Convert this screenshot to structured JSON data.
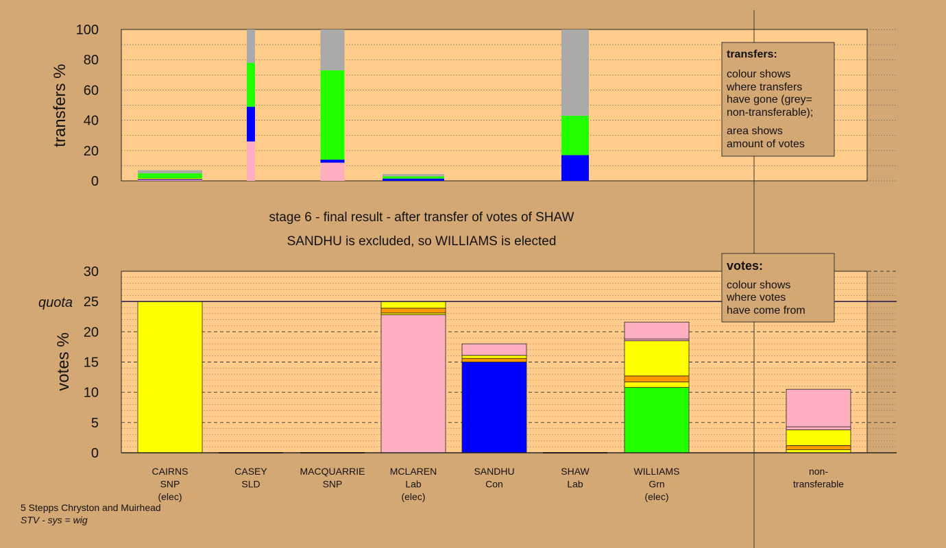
{
  "page": {
    "stage_line": "stage 6 - final result - after transfer of votes of SHAW",
    "outcome_line": "SANDHU is excluded, so WILLIAMS is elected",
    "footer_title": "5 Stepps Chryston and Muirhead",
    "footer_system": "STV - sys = wig"
  },
  "chart_data": [
    {
      "type": "bar",
      "ylabel": "transfers %",
      "ylim": [
        0,
        100
      ],
      "yticks": [
        0,
        20,
        40,
        60,
        80,
        100
      ],
      "grid": "dotted minor lines",
      "legend_box": {
        "title": "transfers:",
        "lines": [
          "colour shows",
          "where transfers",
          "have gone (grey=",
          "non-transferable);",
          "area shows",
          "amount of votes"
        ]
      },
      "categories": [
        "CAIRNS",
        "CASEY",
        "MACQUARRIE",
        "MCLAREN",
        "SANDHU",
        "SHAW",
        "WILLIAMS"
      ],
      "stacks": [
        {
          "category": "CAIRNS",
          "segments": [
            {
              "color": "#ffb0c0",
              "value": 0.5
            },
            {
              "color": "#0000ff",
              "value": 0.5
            },
            {
              "color": "#ff9900",
              "value": 0.5
            },
            {
              "color": "#22ff00",
              "value": 3.5
            },
            {
              "color": "#aaaaaa",
              "value": 2
            }
          ]
        },
        {
          "category": "CASEY",
          "segments": [
            {
              "color": "#ffb0c0",
              "value": 26
            },
            {
              "color": "#0000ff",
              "value": 23
            },
            {
              "color": "#22ff00",
              "value": 29
            },
            {
              "color": "#aaaaaa",
              "value": 22
            }
          ]
        },
        {
          "category": "MACQUARRIE",
          "segments": [
            {
              "color": "#ffb0c0",
              "value": 12
            },
            {
              "color": "#0000ff",
              "value": 2
            },
            {
              "color": "#22ff00",
              "value": 59
            },
            {
              "color": "#aaaaaa",
              "value": 27
            }
          ]
        },
        {
          "category": "MCLAREN",
          "segments": [
            {
              "color": "#0000ff",
              "value": 1.5
            },
            {
              "color": "#22ff00",
              "value": 1.5
            },
            {
              "color": "#aaaaaa",
              "value": 1.5
            }
          ]
        },
        {
          "category": "SANDHU",
          "segments": []
        },
        {
          "category": "SHAW",
          "segments": [
            {
              "color": "#0000ff",
              "value": 17
            },
            {
              "color": "#22ff00",
              "value": 26
            },
            {
              "color": "#aaaaaa",
              "value": 57
            }
          ]
        },
        {
          "category": "WILLIAMS",
          "segments": []
        }
      ]
    },
    {
      "type": "bar",
      "ylabel": "votes %",
      "ylim": [
        0,
        30
      ],
      "yticks": [
        0,
        5,
        10,
        15,
        20,
        25,
        30
      ],
      "quota": {
        "label": "quota",
        "value": 25
      },
      "grid": "dashed major, dotted minor",
      "legend_box": {
        "title": "votes:",
        "lines": [
          "colour shows",
          "where votes",
          "have come from"
        ]
      },
      "categories": [
        {
          "name": "CAIRNS",
          "party": "SNP",
          "note": "(elec)"
        },
        {
          "name": "CASEY",
          "party": "SLD",
          "note": ""
        },
        {
          "name": "MACQUARRIE",
          "party": "SNP",
          "note": ""
        },
        {
          "name": "MCLAREN",
          "party": "Lab",
          "note": "(elec)"
        },
        {
          "name": "SANDHU",
          "party": "Con",
          "note": ""
        },
        {
          "name": "SHAW",
          "party": "Lab",
          "note": ""
        },
        {
          "name": "WILLIAMS",
          "party": "Grn",
          "note": "(elec)"
        },
        {
          "name": "non-",
          "party": "transferable",
          "note": ""
        }
      ],
      "stacks": [
        {
          "category": "CAIRNS",
          "segments": [
            {
              "color": "#ffff00",
              "value": 25
            }
          ]
        },
        {
          "category": "CASEY",
          "segments": []
        },
        {
          "category": "MACQUARRIE",
          "segments": []
        },
        {
          "category": "MCLAREN",
          "segments": [
            {
              "color": "#ffb0c0",
              "value": 22.8
            },
            {
              "color": "#ffff00",
              "value": 0.3
            },
            {
              "color": "#ff9900",
              "value": 0.8
            },
            {
              "color": "#ffff00",
              "value": 1.1
            }
          ]
        },
        {
          "category": "SANDHU",
          "segments": [
            {
              "color": "#0000ff",
              "value": 15
            },
            {
              "color": "#ff9900",
              "value": 0.6
            },
            {
              "color": "#ffff00",
              "value": 0.5
            },
            {
              "color": "#ffb0c0",
              "value": 1.9
            }
          ]
        },
        {
          "category": "SHAW",
          "segments": []
        },
        {
          "category": "WILLIAMS",
          "segments": [
            {
              "color": "#22ff00",
              "value": 10.8
            },
            {
              "color": "#ffff00",
              "value": 0.9
            },
            {
              "color": "#ff9900",
              "value": 1
            },
            {
              "color": "#ffff00",
              "value": 5.8
            },
            {
              "color": "#ffb0c0",
              "value": 0.3
            },
            {
              "color": "#ffb0c0",
              "value": 2.8
            }
          ]
        },
        {
          "category": "non-transferable",
          "segments": [
            {
              "color": "#ffff00",
              "value": 0.5
            },
            {
              "color": "#ff9900",
              "value": 0.7
            },
            {
              "color": "#ffff00",
              "value": 2.6
            },
            {
              "color": "#ffb0c0",
              "value": 0.5
            },
            {
              "color": "#ffb0c0",
              "value": 6.2
            }
          ]
        }
      ]
    }
  ]
}
